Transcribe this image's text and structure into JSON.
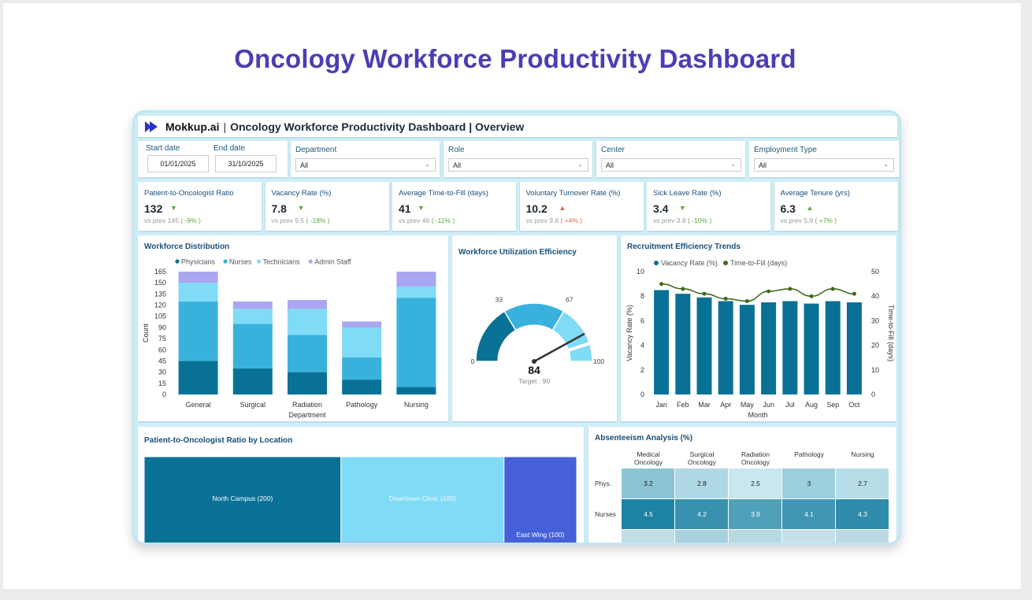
{
  "page_title": "Oncology Workforce Productivity Dashboard",
  "header": {
    "brand": "Mokkup.ai",
    "title": "Oncology Workforce Productivity Dashboard | Overview"
  },
  "filters": {
    "start_label": "Start date",
    "start_value": "01/01/2025",
    "end_label": "End date",
    "end_value": "31/10/2025",
    "department_label": "Department",
    "department_value": "All",
    "role_label": "Role",
    "role_value": "All",
    "center_label": "Center",
    "center_value": "All",
    "employment_label": "Employment Type",
    "employment_value": "All"
  },
  "kpis": [
    {
      "title": "Patient-to-Oncologist Ratio",
      "value": "132",
      "dir": "down",
      "prev": "vs prev 145",
      "change": "( -9% )",
      "good": true
    },
    {
      "title": "Vacancy Rate (%)",
      "value": "7.8",
      "dir": "down",
      "prev": "vs prev 9.5",
      "change": "( -18% )",
      "good": true
    },
    {
      "title": "Average Time-to-Fill (days)",
      "value": "41",
      "dir": "down",
      "prev": "vs prev 46",
      "change": "( -11% )",
      "good": true
    },
    {
      "title": "Voluntary Turnover Rate (%)",
      "value": "10.2",
      "dir": "up",
      "prev": "vs prev 9.8",
      "change": "( +4% )",
      "good": false
    },
    {
      "title": "Sick Leave Rate (%)",
      "value": "3.4",
      "dir": "down",
      "prev": "vs prev 3.8",
      "change": "( -10% )",
      "good": true
    },
    {
      "title": "Average Tenure (yrs)",
      "value": "6.3",
      "dir": "up",
      "prev": "vs prev 5.9",
      "change": "( +7% )",
      "good": true
    }
  ],
  "colors": {
    "physicians": "#0a7196",
    "nurses": "#38b2dc",
    "technicians": "#7fdbf6",
    "admin": "#a9a6f2",
    "bar": "#0a7196",
    "line": "#3f6a1e"
  },
  "chart_data": [
    {
      "type": "bar",
      "stacked": true,
      "title": "Workforce Distribution",
      "categories": [
        "General",
        "Surgical",
        "Radiation",
        "Pathology",
        "Nursing"
      ],
      "series": [
        {
          "name": "Physicians",
          "values": [
            45,
            35,
            30,
            20,
            10
          ]
        },
        {
          "name": "Nurses",
          "values": [
            80,
            60,
            50,
            30,
            120
          ]
        },
        {
          "name": "Technicians",
          "values": [
            25,
            20,
            35,
            40,
            15
          ]
        },
        {
          "name": "Admin Staff",
          "values": [
            15,
            10,
            12,
            8,
            20
          ]
        }
      ],
      "xlabel": "Department",
      "ylabel": "Count",
      "yticks": [
        0,
        15,
        30,
        45,
        60,
        75,
        90,
        105,
        120,
        135,
        150,
        165
      ],
      "ylim": [
        0,
        165
      ]
    },
    {
      "type": "gauge",
      "title": "Workforce Utilization Efficiency",
      "value": 84,
      "min": 0,
      "max": 100,
      "target": 90,
      "target_label": "Target : 90",
      "value_label": "84",
      "scale_labels": [
        "0",
        "33",
        "67",
        "100"
      ]
    },
    {
      "type": "bar+line",
      "title": "Recruitment Efficiency Trends",
      "categories": [
        "Jan",
        "Feb",
        "Mar",
        "Apr",
        "May",
        "Jun",
        "Jul",
        "Aug",
        "Sep",
        "Oct"
      ],
      "series": [
        {
          "name": "Vacancy Rate (%)",
          "type": "bar",
          "axis": "left",
          "values": [
            8.5,
            8.2,
            7.9,
            7.6,
            7.3,
            7.5,
            7.6,
            7.4,
            7.6,
            7.5
          ]
        },
        {
          "name": "Time-to-Fill (days)",
          "type": "line",
          "axis": "right",
          "values": [
            45,
            43,
            41,
            39,
            38,
            42,
            43,
            40,
            43,
            41
          ]
        }
      ],
      "xlabel": "Month",
      "ylabel": "Vacancy Rate (%)",
      "y2label": "Time-to-Fill (days)",
      "yticks": [
        0,
        2,
        4,
        6,
        8,
        10
      ],
      "y2ticks": [
        0,
        10,
        20,
        30,
        40,
        50
      ],
      "ylim": [
        0,
        10
      ],
      "y2lim": [
        0,
        50
      ]
    },
    {
      "type": "treemap",
      "title": "Patient-to-Oncologist Ratio by Location",
      "items": [
        {
          "label": "North Campus (200)",
          "value": 200
        },
        {
          "label": "Downtown Clinic (100)",
          "value": 100
        },
        {
          "label": "East Wing (100)",
          "value": 100
        }
      ]
    },
    {
      "type": "heatmap",
      "title": "Absenteeism Analysis (%)",
      "columns": [
        "Medical Oncology",
        "Surgical Oncology",
        "Radiation Oncology",
        "Pathology",
        "Nursing"
      ],
      "rows": [
        {
          "label": "Phys.",
          "values": [
            3.2,
            2.8,
            2.5,
            3,
            2.7
          ],
          "display": [
            "3.2",
            "2.8",
            "2.5",
            "3",
            "2.7"
          ]
        },
        {
          "label": "Nurses",
          "values": [
            4.5,
            4.2,
            3.9,
            4.1,
            4.3
          ],
          "display": [
            "4.5",
            "4.2",
            "3.9",
            "4.1",
            "4.3"
          ]
        }
      ]
    }
  ]
}
